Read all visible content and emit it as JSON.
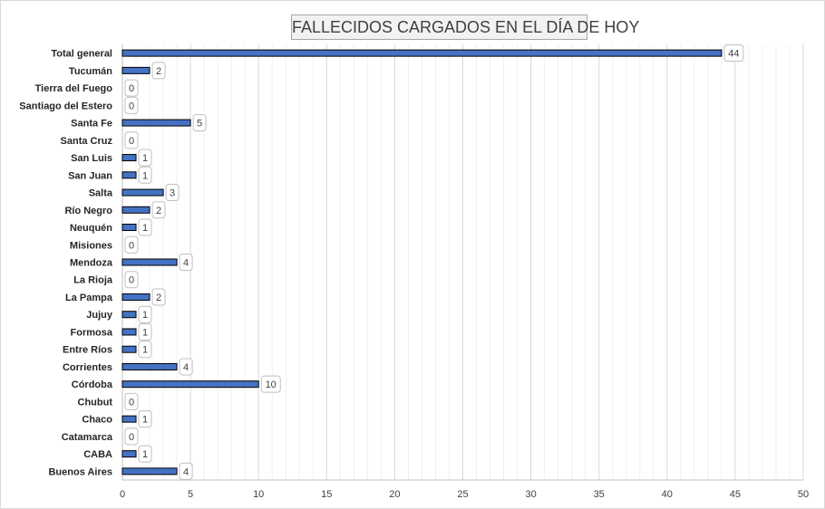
{
  "chart_data": {
    "type": "bar",
    "orientation": "horizontal",
    "title": "FALLECIDOS CARGADOS EN EL DÍA DE HOY",
    "categories": [
      "Total general",
      "Tucumán",
      "Tierra del Fuego",
      "Santiago del Estero",
      "Santa Fe",
      "Santa Cruz",
      "San Luis",
      "San Juan",
      "Salta",
      "Río Negro",
      "Neuquén",
      "Misiones",
      "Mendoza",
      "La Rioja",
      "La Pampa",
      "Jujuy",
      "Formosa",
      "Entre Ríos",
      "Corrientes",
      "Córdoba",
      "Chubut",
      "Chaco",
      "Catamarca",
      "CABA",
      "Buenos Aires"
    ],
    "values": [
      44,
      2,
      0,
      0,
      5,
      0,
      1,
      1,
      3,
      2,
      1,
      0,
      4,
      0,
      2,
      1,
      1,
      1,
      4,
      10,
      0,
      1,
      0,
      1,
      4
    ],
    "xlim": [
      0,
      50
    ],
    "xticks": [
      0,
      5,
      10,
      15,
      20,
      25,
      30,
      35,
      40,
      45,
      50
    ],
    "grid": true,
    "legend": "none",
    "bar_color": "#4472c4",
    "bar_border_color": "#000000"
  }
}
